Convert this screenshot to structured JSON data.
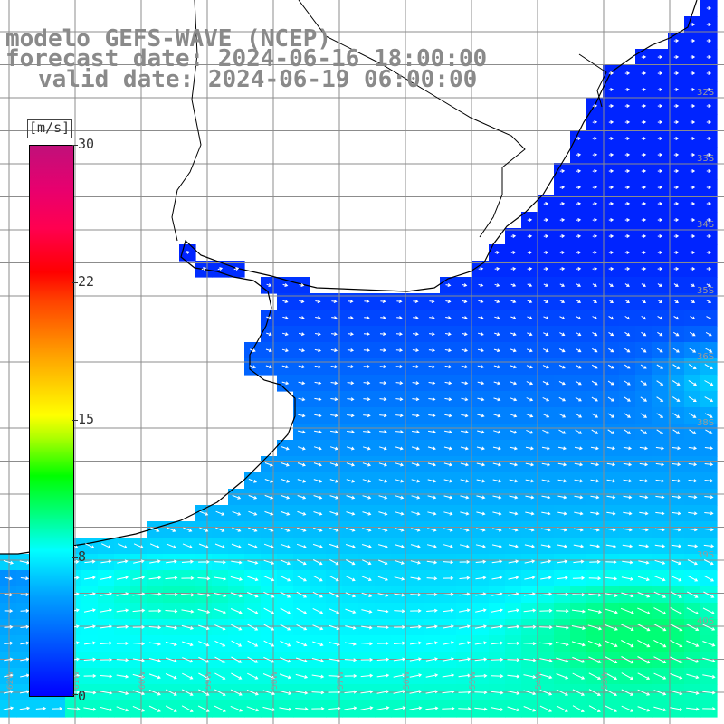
{
  "header": {
    "model": "modelo GEFS-WAVE (NCEP)",
    "forecast": "forecast date: 2024-06-16 18:00:00",
    "valid": "valid date: 2024-06-19 06:00:00"
  },
  "colorbar": {
    "unit": "[m/s]",
    "ticks": [
      {
        "label": "30",
        "value": 30
      },
      {
        "label": "22",
        "value": 22
      },
      {
        "label": "15",
        "value": 15
      },
      {
        "label": "8",
        "value": 8
      },
      {
        "label": "0",
        "value": 0
      }
    ],
    "range": [
      0,
      30
    ]
  },
  "colors": {
    "low": "#0000ff",
    "mid": "#00ffff",
    "high": "#ff0000",
    "land": "#ffffff",
    "grid": "#8c8c8c",
    "coast": "#000000",
    "arrows": "#ffffff"
  },
  "map": {
    "field": "wind speed and direction",
    "lat_labels": [
      "32S",
      "33S",
      "34S",
      "35S",
      "36S",
      "38S",
      "39S",
      "40S"
    ],
    "lon_labels": [
      "62W",
      "61W",
      "60W",
      "59W",
      "58W",
      "57W",
      "56W",
      "55W",
      "54W",
      "53W"
    ]
  }
}
